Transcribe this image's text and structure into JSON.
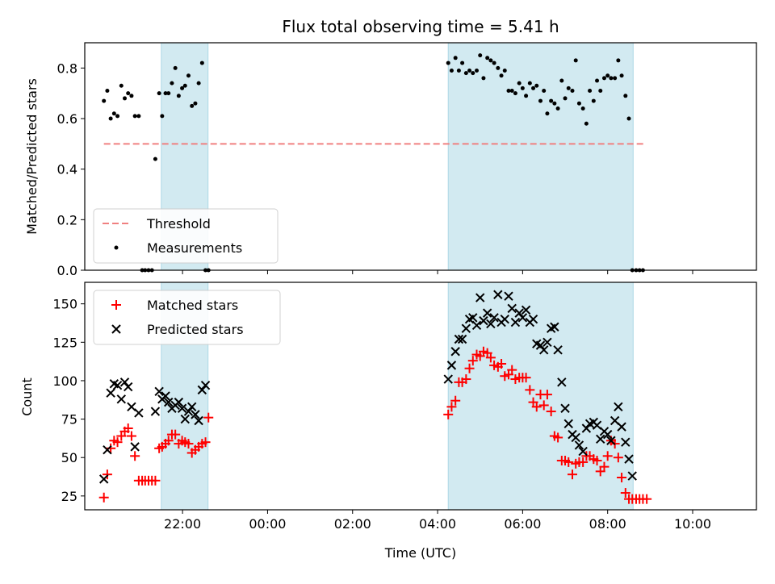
{
  "colors": {
    "threshold": "#f08080",
    "measurement": "#000000",
    "matched": "#ff0000",
    "predicted": "#000000",
    "shade": "#add8e6"
  },
  "chart_data": [
    {
      "type": "scatter",
      "title": "Flux total observing time = 5.41 h",
      "xlabel": "",
      "ylabel": "Matched/Predicted stars",
      "xlim": [
        -2.3,
        13.5
      ],
      "ylim": [
        0,
        0.9
      ],
      "yticks": [
        0.0,
        0.2,
        0.4,
        0.6,
        0.8
      ],
      "ytick_labels": [
        "0.0",
        "0.2",
        "0.4",
        "0.6",
        "0.8"
      ],
      "xticks": [
        0,
        2,
        4,
        6,
        8,
        10,
        12
      ],
      "shaded_intervals": [
        [
          -0.5,
          0.6
        ],
        [
          6.25,
          10.6
        ]
      ],
      "legend_location": "lower left",
      "series": [
        {
          "name": "Threshold",
          "kind": "line",
          "style": "dashed",
          "x": [
            -1.85,
            10.85
          ],
          "y": [
            0.5,
            0.5
          ]
        },
        {
          "name": "Measurements",
          "kind": "scatter",
          "marker": "dot",
          "x": [
            -1.85,
            -1.77,
            -1.69,
            -1.61,
            -1.53,
            -1.44,
            -1.36,
            -1.28,
            -1.2,
            -1.12,
            -1.03,
            -0.95,
            -0.88,
            -0.8,
            -0.72,
            -0.64,
            -0.55,
            -0.48,
            -0.4,
            -0.33,
            -0.25,
            -0.17,
            -0.09,
            -0.01,
            0.06,
            0.14,
            0.22,
            0.3,
            0.38,
            0.46,
            0.54,
            0.61,
            6.25,
            6.33,
            6.42,
            6.5,
            6.58,
            6.67,
            6.75,
            6.83,
            6.92,
            7.0,
            7.08,
            7.17,
            7.25,
            7.33,
            7.42,
            7.5,
            7.58,
            7.67,
            7.75,
            7.83,
            7.92,
            8.0,
            8.08,
            8.17,
            8.25,
            8.33,
            8.42,
            8.5,
            8.58,
            8.67,
            8.75,
            8.83,
            8.92,
            9.0,
            9.08,
            9.17,
            9.25,
            9.33,
            9.42,
            9.5,
            9.58,
            9.67,
            9.75,
            9.83,
            9.92,
            10.0,
            10.08,
            10.17,
            10.25,
            10.33,
            10.42,
            10.5,
            10.58,
            10.67,
            10.75,
            10.83
          ],
          "y": [
            0.67,
            0.71,
            0.6,
            0.62,
            0.61,
            0.73,
            0.68,
            0.7,
            0.69,
            0.61,
            0.61,
            0.0,
            0.0,
            0.0,
            0.0,
            0.44,
            0.7,
            0.61,
            0.7,
            0.7,
            0.74,
            0.8,
            0.69,
            0.72,
            0.73,
            0.77,
            0.65,
            0.66,
            0.74,
            0.82,
            0.0,
            0.0,
            0.82,
            0.79,
            0.84,
            0.79,
            0.82,
            0.78,
            0.79,
            0.78,
            0.79,
            0.85,
            0.76,
            0.84,
            0.83,
            0.82,
            0.8,
            0.77,
            0.79,
            0.71,
            0.71,
            0.7,
            0.74,
            0.72,
            0.69,
            0.74,
            0.72,
            0.73,
            0.67,
            0.71,
            0.62,
            0.67,
            0.66,
            0.64,
            0.75,
            0.68,
            0.72,
            0.71,
            0.83,
            0.66,
            0.64,
            0.58,
            0.71,
            0.67,
            0.75,
            0.71,
            0.76,
            0.77,
            0.76,
            0.76,
            0.83,
            0.77,
            0.69,
            0.6,
            0.0,
            0.0,
            0.0,
            0.0
          ]
        }
      ]
    },
    {
      "type": "scatter",
      "title": "",
      "xlabel": "Time (UTC)",
      "ylabel": "Count",
      "xlim": [
        -2.3,
        13.5
      ],
      "ylim": [
        16,
        164
      ],
      "yticks": [
        25,
        50,
        75,
        100,
        125,
        150
      ],
      "ytick_labels": [
        "25",
        "50",
        "75",
        "100",
        "125",
        "150"
      ],
      "xticks": [
        0,
        2,
        4,
        6,
        8,
        10,
        12
      ],
      "xtick_labels": [
        "22:00",
        "00:00",
        "02:00",
        "04:00",
        "06:00",
        "08:00",
        "10:00"
      ],
      "shaded_intervals": [
        [
          -0.5,
          0.6
        ],
        [
          6.25,
          10.6
        ]
      ],
      "legend_location": "upper left",
      "series": [
        {
          "name": "Matched stars",
          "kind": "scatter",
          "marker": "plus",
          "x": [
            -1.85,
            -1.77,
            -1.69,
            -1.61,
            -1.53,
            -1.44,
            -1.36,
            -1.28,
            -1.2,
            -1.12,
            -1.03,
            -0.95,
            -0.88,
            -0.8,
            -0.72,
            -0.64,
            -0.55,
            -0.48,
            -0.4,
            -0.33,
            -0.25,
            -0.17,
            -0.09,
            -0.01,
            0.06,
            0.14,
            0.22,
            0.3,
            0.38,
            0.46,
            0.54,
            0.61,
            6.25,
            6.33,
            6.42,
            6.5,
            6.58,
            6.67,
            6.75,
            6.83,
            6.92,
            7.0,
            7.08,
            7.17,
            7.25,
            7.33,
            7.42,
            7.5,
            7.58,
            7.67,
            7.75,
            7.83,
            7.92,
            8.0,
            8.08,
            8.17,
            8.25,
            8.33,
            8.42,
            8.5,
            8.58,
            8.67,
            8.75,
            8.83,
            8.92,
            9.0,
            9.08,
            9.17,
            9.25,
            9.33,
            9.42,
            9.5,
            9.58,
            9.67,
            9.75,
            9.83,
            9.92,
            10.0,
            10.08,
            10.17,
            10.25,
            10.33,
            10.42,
            10.5,
            10.58,
            10.67,
            10.75,
            10.83,
            10.92
          ],
          "y": [
            24,
            39,
            56,
            61,
            60,
            64,
            67,
            69,
            64,
            51,
            35,
            35,
            35,
            35,
            35,
            35,
            56,
            57,
            59,
            61,
            65,
            65,
            59,
            61,
            60,
            59,
            53,
            55,
            57,
            59,
            60,
            76,
            78,
            83,
            87,
            99,
            99,
            101,
            108,
            113,
            117,
            116,
            119,
            118,
            115,
            110,
            109,
            111,
            103,
            104,
            107,
            101,
            102,
            102,
            102,
            94,
            86,
            83,
            91,
            84,
            91,
            80,
            64,
            63,
            48,
            48,
            47,
            39,
            46,
            47,
            47,
            51,
            51,
            49,
            48,
            41,
            44,
            51,
            61,
            59,
            50,
            37,
            27,
            23,
            23,
            23,
            23,
            23,
            23
          ],
          "x_fix": true
        },
        {
          "name": "Predicted stars",
          "kind": "scatter",
          "marker": "x",
          "x": [
            -1.85,
            -1.77,
            -1.69,
            -1.61,
            -1.53,
            -1.44,
            -1.36,
            -1.28,
            -1.2,
            -1.12,
            -1.03,
            -0.64,
            -0.55,
            -0.48,
            -0.4,
            -0.33,
            -0.25,
            -0.17,
            -0.09,
            -0.01,
            0.06,
            0.14,
            0.22,
            0.3,
            0.38,
            0.46,
            0.54,
            6.25,
            6.33,
            6.42,
            6.5,
            6.58,
            6.67,
            6.75,
            6.83,
            6.92,
            7.0,
            7.08,
            7.17,
            7.25,
            7.33,
            7.42,
            7.5,
            7.58,
            7.67,
            7.75,
            7.83,
            7.92,
            8.0,
            8.08,
            8.17,
            8.25,
            8.33,
            8.42,
            8.5,
            8.58,
            8.67,
            8.75,
            8.83,
            8.92,
            9.0,
            9.08,
            9.17,
            9.25,
            9.33,
            9.42,
            9.5,
            9.58,
            9.67,
            9.75,
            9.83,
            9.92,
            10.0,
            10.08,
            10.17,
            10.25,
            10.33,
            10.42,
            10.5,
            10.58
          ],
          "y": [
            36,
            55,
            92,
            98,
            97,
            88,
            99,
            96,
            83,
            57,
            79,
            80,
            93,
            88,
            90,
            86,
            82,
            84,
            86,
            82,
            75,
            80,
            83,
            78,
            74,
            94,
            97,
            101,
            110,
            119,
            127,
            127,
            134,
            140,
            141,
            136,
            154,
            139,
            144,
            137,
            141,
            156,
            138,
            140,
            155,
            147,
            138,
            144,
            141,
            146,
            138,
            140,
            124,
            123,
            120,
            125,
            134,
            135,
            120,
            99,
            82,
            72,
            65,
            63,
            58,
            54,
            69,
            72,
            73,
            71,
            62,
            67,
            65,
            61,
            74,
            83,
            70,
            60,
            49,
            38
          ]
        }
      ]
    }
  ]
}
